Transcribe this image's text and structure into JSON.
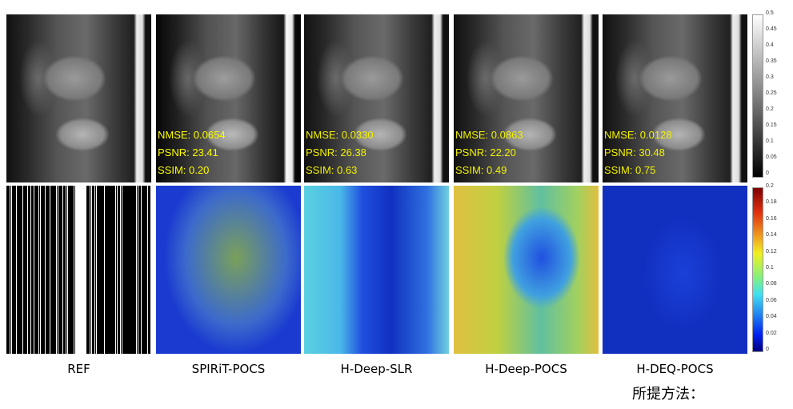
{
  "columns": [
    {
      "label": "REF"
    },
    {
      "label": "SPIRiT-POCS",
      "nmse": "NMSE: 0.0654",
      "psnr": "PSNR: 23.41",
      "ssim": "SSIM: 0.20"
    },
    {
      "label": "H-Deep-SLR",
      "nmse": "NMSE: 0.0330",
      "psnr": "PSNR: 26.38",
      "ssim": "SSIM: 0.63"
    },
    {
      "label": "H-Deep-POCS",
      "nmse": "NMSE: 0.0863",
      "psnr": "PSNR: 22.20",
      "ssim": "SSIM: 0.49"
    },
    {
      "label": "H-DEQ-POCS",
      "nmse": "NMSE: 0.0128",
      "psnr": "PSNR: 30.48",
      "ssim": "SSIM: 0.75"
    }
  ],
  "proposed_note": "所提方法：",
  "colorbar_gray": {
    "ticks": [
      "0.5",
      "0.45",
      "0.4",
      "0.35",
      "0.3",
      "0.25",
      "0.2",
      "0.15",
      "0.1",
      "0.05",
      "0"
    ]
  },
  "colorbar_jet": {
    "ticks": [
      "0.2",
      "0.18",
      "0.16",
      "0.14",
      "0.12",
      "0.1",
      "0.08",
      "0.06",
      "0.04",
      "0.02",
      "0"
    ]
  }
}
